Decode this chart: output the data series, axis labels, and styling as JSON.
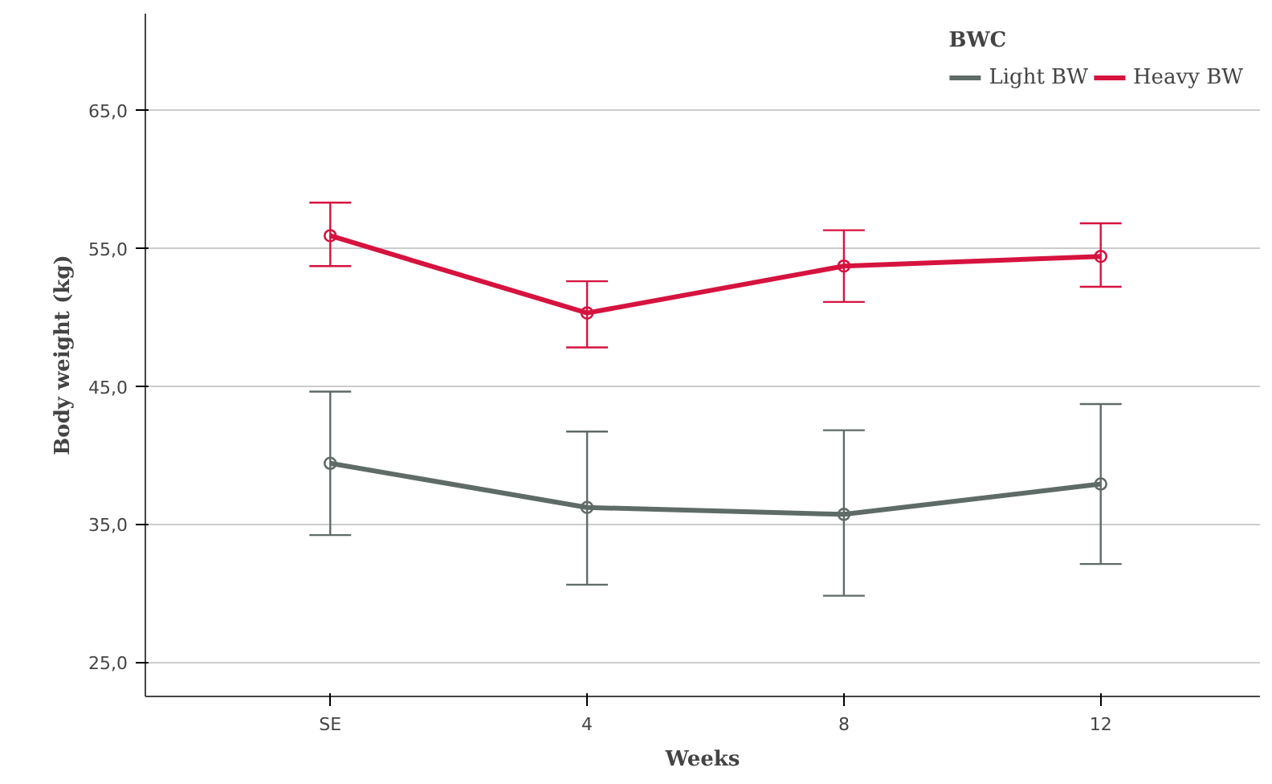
{
  "chart_data": {
    "type": "line",
    "xlabel": "Weeks",
    "ylabel": "Body weight (kg)",
    "legend_title": "BWC",
    "categories": [
      "SE",
      "4",
      "8",
      "12"
    ],
    "series": [
      {
        "name": "Light BW",
        "color": "#5f6b66",
        "values": [
          39.4,
          36.2,
          35.7,
          37.9
        ],
        "errors": [
          [
            34.2,
            44.6
          ],
          [
            30.6,
            41.7
          ],
          [
            29.8,
            41.8
          ],
          [
            32.1,
            43.7
          ]
        ]
      },
      {
        "name": "Heavy BW",
        "color": "#d6133f",
        "values": [
          55.9,
          50.3,
          53.7,
          54.4
        ],
        "errors": [
          [
            53.7,
            58.3
          ],
          [
            47.8,
            52.6
          ],
          [
            51.1,
            56.3
          ],
          [
            52.2,
            56.8
          ]
        ]
      }
    ],
    "ylim": [
      22.5,
      72.0
    ],
    "yticks": [
      {
        "value": 25,
        "label": "25,0"
      },
      {
        "value": 35,
        "label": "35,0"
      },
      {
        "value": 45,
        "label": "45,0"
      },
      {
        "value": 55,
        "label": "55,0"
      },
      {
        "value": 65,
        "label": "65,0"
      }
    ],
    "grid": "y",
    "legend": "top right",
    "marker": "circle",
    "line_style": "solid"
  }
}
